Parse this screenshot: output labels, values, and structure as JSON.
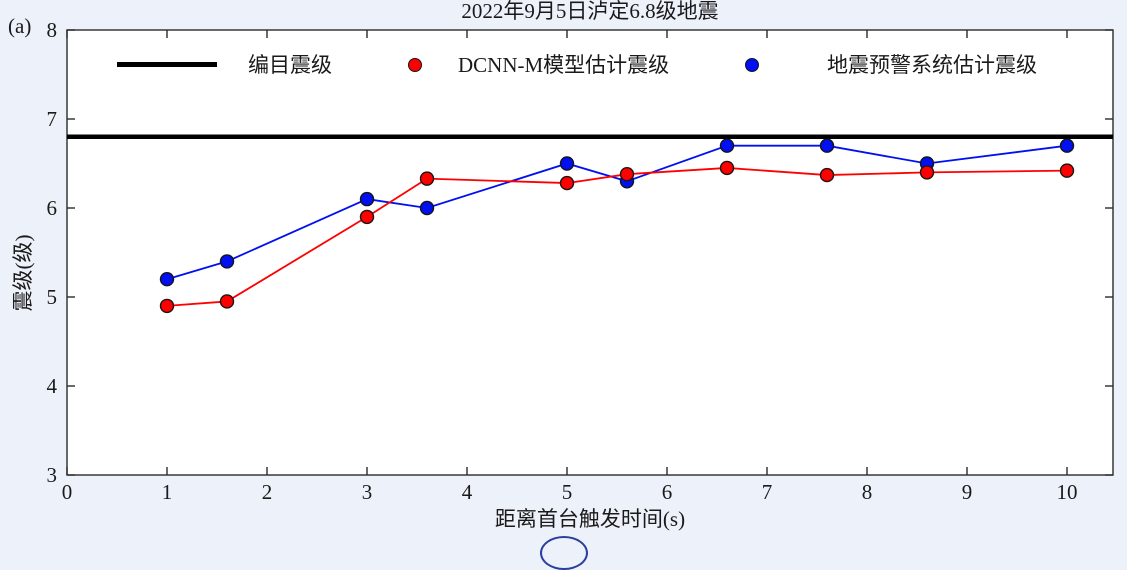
{
  "figure": {
    "panel_label": "(a)",
    "background_color": "#edf1f9",
    "plot_background": "#ffffff",
    "axis_color": "#2b2b2b"
  },
  "chart_data": {
    "type": "line",
    "title": "2022年9月5日泸定6.8级地震",
    "xlabel": "距离首台触发时间(s)",
    "ylabel": "震级(级)",
    "xlim": [
      0,
      10.46
    ],
    "ylim": [
      3,
      8
    ],
    "xticks": [
      0,
      1,
      2,
      3,
      4,
      5,
      6,
      7,
      8,
      9,
      10
    ],
    "yticks": [
      3,
      4,
      5,
      6,
      7,
      8
    ],
    "grid": false,
    "legend_position": "top-inside-row",
    "x": [
      1.0,
      1.6,
      3.0,
      3.6,
      5.0,
      5.6,
      6.6,
      7.6,
      8.6,
      10.0
    ],
    "series": [
      {
        "name": "编目震级",
        "draw": "hline",
        "value": 6.8,
        "color": "#000000",
        "line_width": 4.5
      },
      {
        "name": "地震预警系统估计震级",
        "draw": "line-markers",
        "color": "#0010f0",
        "edge_color": "#14141f",
        "values": [
          5.2,
          5.4,
          6.1,
          6.0,
          6.5,
          6.3,
          6.7,
          6.7,
          6.5,
          6.7
        ]
      },
      {
        "name": "DCNN-M模型估计震级",
        "draw": "line-markers",
        "color": "#ff0000",
        "edge_color": "#1f1414",
        "values": [
          4.9,
          4.95,
          5.9,
          6.33,
          6.28,
          6.38,
          6.45,
          6.37,
          6.4,
          6.42
        ]
      }
    ]
  },
  "legend": {
    "items": [
      {
        "label": "编目震级",
        "marker": "line-swatch",
        "color": "#000000"
      },
      {
        "label": "DCNN-M模型估计震级",
        "marker": "dot",
        "color": "#ff0000"
      },
      {
        "label": "地震预警系统估计震级",
        "marker": "dot",
        "color": "#0010f0"
      }
    ]
  },
  "decorations": {
    "cropped_circle_note": "partially visible circled figure-number at bottom center",
    "cropped_circle_color": "#2a3f9f"
  }
}
